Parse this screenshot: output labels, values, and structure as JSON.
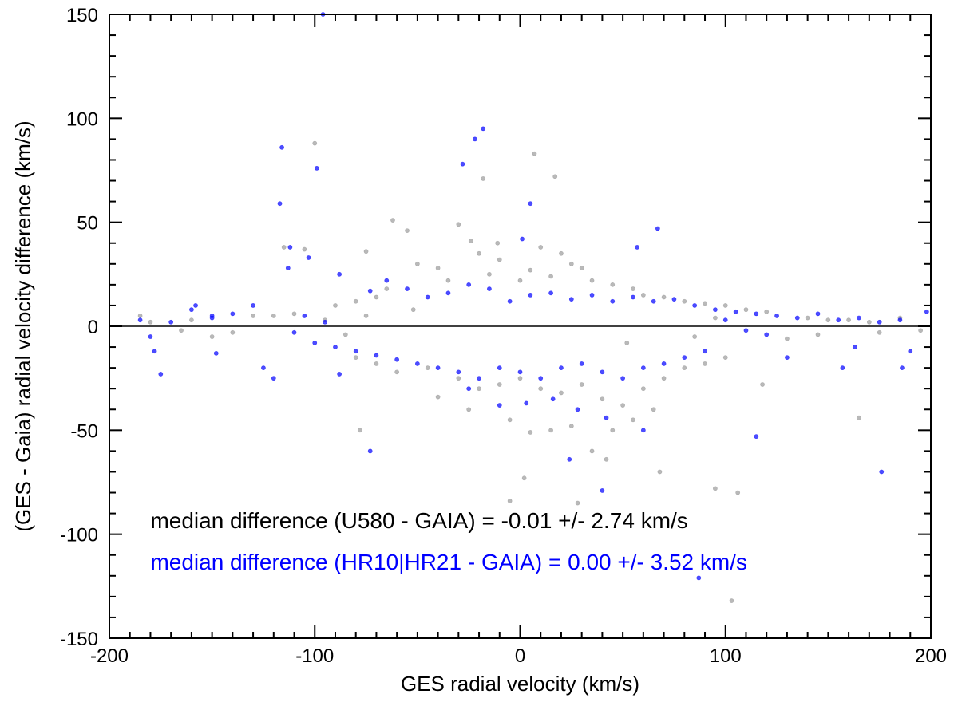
{
  "chart_data": {
    "type": "scatter",
    "title": "",
    "xlabel": "GES radial velocity (km/s)",
    "ylabel": "(GES - Gaia) radial velocity difference  (km/s)",
    "xlim": [
      -200,
      200
    ],
    "ylim": [
      -150,
      150
    ],
    "x_ticks": [
      -200,
      -100,
      0,
      100,
      200
    ],
    "y_ticks": [
      -150,
      -100,
      -50,
      0,
      50,
      100,
      150
    ],
    "x_tick_labels": [
      "-200",
      "-100",
      "0",
      "100",
      "200"
    ],
    "y_tick_labels": [
      "-150",
      "-100",
      "-50",
      "0",
      "50",
      "100",
      "150"
    ],
    "x_minor_step": 10,
    "y_minor_step": 10,
    "grid": false,
    "zero_line": 0,
    "series": [
      {
        "color": "#808080",
        "points": [
          [
            -100,
            88
          ],
          [
            7,
            83
          ],
          [
            -18,
            71
          ],
          [
            17,
            72
          ],
          [
            -62,
            51
          ],
          [
            -30,
            49
          ],
          [
            -24,
            41
          ],
          [
            -11,
            40
          ],
          [
            -55,
            46
          ],
          [
            -75,
            36
          ],
          [
            -50,
            30
          ],
          [
            -40,
            28
          ],
          [
            -20,
            35
          ],
          [
            -10,
            32
          ],
          [
            10,
            38
          ],
          [
            20,
            35
          ],
          [
            25,
            30
          ],
          [
            30,
            28
          ],
          [
            -35,
            22
          ],
          [
            -15,
            25
          ],
          [
            0,
            22
          ],
          [
            5,
            27
          ],
          [
            15,
            24
          ],
          [
            35,
            22
          ],
          [
            45,
            20
          ],
          [
            55,
            18
          ],
          [
            -65,
            18
          ],
          [
            -70,
            14
          ],
          [
            -80,
            12
          ],
          [
            -90,
            10
          ],
          [
            60,
            15
          ],
          [
            70,
            14
          ],
          [
            80,
            12
          ],
          [
            90,
            11
          ],
          [
            100,
            10
          ],
          [
            110,
            8
          ],
          [
            120,
            7
          ],
          [
            -110,
            6
          ],
          [
            -120,
            5
          ],
          [
            -130,
            5
          ],
          [
            -160,
            3
          ],
          [
            -185,
            5
          ],
          [
            -180,
            2
          ],
          [
            140,
            4
          ],
          [
            150,
            3
          ],
          [
            160,
            3
          ],
          [
            170,
            2
          ],
          [
            185,
            4
          ],
          [
            -105,
            37
          ],
          [
            -115,
            38
          ],
          [
            -45,
            -20
          ],
          [
            -30,
            -25
          ],
          [
            -20,
            -30
          ],
          [
            -10,
            -28
          ],
          [
            0,
            -25
          ],
          [
            10,
            -30
          ],
          [
            20,
            -32
          ],
          [
            30,
            -28
          ],
          [
            40,
            -35
          ],
          [
            50,
            -38
          ],
          [
            60,
            -30
          ],
          [
            70,
            -25
          ],
          [
            -60,
            -22
          ],
          [
            -70,
            -18
          ],
          [
            -80,
            -15
          ],
          [
            80,
            -20
          ],
          [
            90,
            -18
          ],
          [
            100,
            -15
          ],
          [
            -78,
            -50
          ],
          [
            15,
            -50
          ],
          [
            5,
            -51
          ],
          [
            35,
            -60
          ],
          [
            42,
            -64
          ],
          [
            28,
            -85
          ],
          [
            2,
            -73
          ],
          [
            -5,
            -84
          ],
          [
            68,
            -70
          ],
          [
            95,
            -78
          ],
          [
            106,
            -80
          ],
          [
            103,
            -132
          ],
          [
            165,
            -44
          ],
          [
            118,
            -28
          ],
          [
            -40,
            -34
          ],
          [
            -25,
            -40
          ],
          [
            -5,
            -45
          ],
          [
            25,
            -48
          ],
          [
            55,
            -45
          ],
          [
            65,
            -40
          ],
          [
            45,
            -50
          ],
          [
            -140,
            -3
          ],
          [
            -150,
            -5
          ],
          [
            -165,
            -2
          ],
          [
            130,
            -6
          ],
          [
            145,
            -4
          ],
          [
            175,
            -3
          ],
          [
            195,
            -2
          ],
          [
            -95,
            3
          ],
          [
            -85,
            -4
          ],
          [
            -75,
            5
          ],
          [
            85,
            -5
          ],
          [
            95,
            4
          ],
          [
            -52,
            8
          ],
          [
            52,
            -8
          ]
        ]
      },
      {
        "color": "#0000ff",
        "points": [
          [
            -96,
            150
          ],
          [
            -116,
            86
          ],
          [
            -99,
            76
          ],
          [
            -22,
            90
          ],
          [
            -18,
            95
          ],
          [
            -28,
            78
          ],
          [
            5,
            59
          ],
          [
            -117,
            59
          ],
          [
            67,
            47
          ],
          [
            1,
            42
          ],
          [
            57,
            38
          ],
          [
            -112,
            38
          ],
          [
            -103,
            33
          ],
          [
            -113,
            28
          ],
          [
            -88,
            25
          ],
          [
            -73,
            17
          ],
          [
            -65,
            22
          ],
          [
            -55,
            18
          ],
          [
            -45,
            14
          ],
          [
            -35,
            16
          ],
          [
            -25,
            20
          ],
          [
            -15,
            18
          ],
          [
            -5,
            12
          ],
          [
            5,
            15
          ],
          [
            15,
            16
          ],
          [
            25,
            13
          ],
          [
            35,
            15
          ],
          [
            45,
            12
          ],
          [
            55,
            14
          ],
          [
            65,
            12
          ],
          [
            75,
            13
          ],
          [
            85,
            10
          ],
          [
            95,
            8
          ],
          [
            105,
            7
          ],
          [
            115,
            6
          ],
          [
            125,
            5
          ],
          [
            135,
            4
          ],
          [
            145,
            6
          ],
          [
            155,
            3
          ],
          [
            165,
            4
          ],
          [
            175,
            2
          ],
          [
            185,
            3
          ],
          [
            198,
            7
          ],
          [
            -130,
            10
          ],
          [
            -140,
            6
          ],
          [
            -150,
            4
          ],
          [
            -160,
            8
          ],
          [
            -170,
            2
          ],
          [
            -180,
            -5
          ],
          [
            -185,
            3
          ],
          [
            -175,
            -23
          ],
          [
            -178,
            -12
          ],
          [
            -148,
            -13
          ],
          [
            -125,
            -20
          ],
          [
            -120,
            -25
          ],
          [
            -88,
            -23
          ],
          [
            -100,
            -8
          ],
          [
            -90,
            -10
          ],
          [
            -80,
            -12
          ],
          [
            -70,
            -14
          ],
          [
            -60,
            -16
          ],
          [
            -50,
            -18
          ],
          [
            -40,
            -20
          ],
          [
            -30,
            -22
          ],
          [
            -20,
            -25
          ],
          [
            -10,
            -20
          ],
          [
            0,
            -22
          ],
          [
            10,
            -25
          ],
          [
            20,
            -20
          ],
          [
            30,
            -18
          ],
          [
            40,
            -22
          ],
          [
            50,
            -25
          ],
          [
            60,
            -20
          ],
          [
            70,
            -18
          ],
          [
            80,
            -15
          ],
          [
            90,
            -12
          ],
          [
            -25,
            -30
          ],
          [
            -10,
            -38
          ],
          [
            3,
            -37
          ],
          [
            16,
            -35
          ],
          [
            28,
            -40
          ],
          [
            42,
            -44
          ],
          [
            60,
            -50
          ],
          [
            -73,
            -60
          ],
          [
            24,
            -64
          ],
          [
            40,
            -79
          ],
          [
            87,
            -121
          ],
          [
            115,
            -53
          ],
          [
            176,
            -70
          ],
          [
            186,
            -20
          ],
          [
            157,
            -20
          ],
          [
            190,
            -12
          ],
          [
            163,
            -10
          ],
          [
            130,
            -15
          ],
          [
            -150,
            5
          ],
          [
            -158,
            10
          ],
          [
            -105,
            5
          ],
          [
            -110,
            -3
          ],
          [
            -95,
            2
          ],
          [
            100,
            3
          ],
          [
            110,
            -2
          ],
          [
            120,
            -4
          ]
        ]
      }
    ],
    "annotations": [
      {
        "text": "median difference (U580 - GAIA) = -0.01 +/-  2.74 km/s",
        "color": "#000000",
        "x": -180,
        "y": -97
      },
      {
        "text": "median difference (HR10|HR21 - GAIA) =  0.00 +/-  3.52 km/s",
        "color": "#0000ff",
        "x": -180,
        "y": -117
      }
    ]
  }
}
